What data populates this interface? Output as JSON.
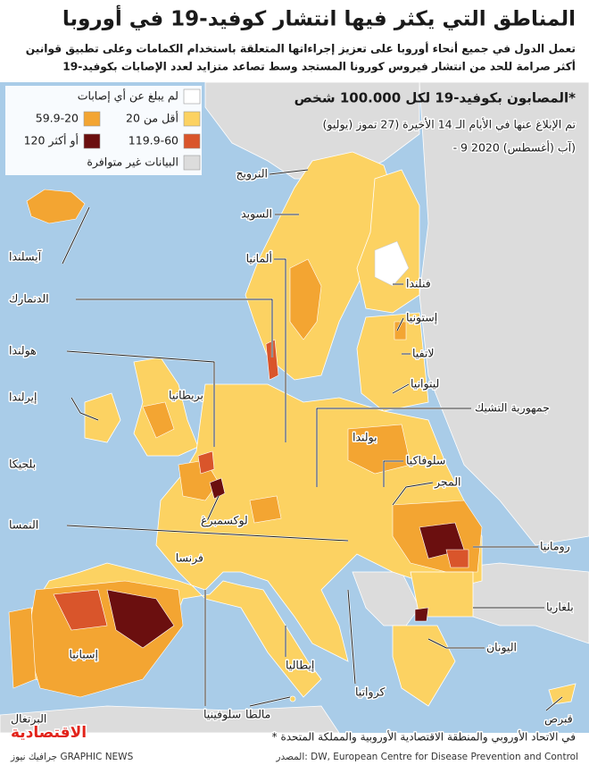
{
  "header": {
    "title": "المناطق التي يكثر فيها انتشار كوفيد-19 في أوروبا",
    "subtitle_lines": [
      "تعمل الدول في جميع أنحاء أوروبا على تعزيز إجراءاتها المتعلقة باستخدام الكمامات وعلى تطبيق قوانين",
      "أكثر صرامة للحد من انتشار فيروس كورونا المستجد وسط تصاعد متزايد لعدد الإصابات بكوفيد-19"
    ]
  },
  "legend": {
    "title": "المصابون بكوفيد-19 لكل 100.000 شخص*",
    "subtitle_lines": [
      "تم الإبلاغ عنها في الأيام الـ 14 الأخيرة (27 تموز (يوليو)",
      "- 9 آب (أغسطس) 2020)"
    ],
    "items": [
      {
        "label": "لم يبلغ عن أي إصابات",
        "color": "#ffffff"
      },
      {
        "label": "أقل من 20",
        "color": "#fcd262"
      },
      {
        "label": "59.9-20",
        "color": "#f3a532"
      },
      {
        "label": "119.9-60",
        "color": "#d9552b"
      },
      {
        "label": "120 أو أكثر",
        "color": "#6b0f0f"
      },
      {
        "label": "البيانات غير متوافرة",
        "color": "#dcdcdc"
      }
    ]
  },
  "labels": [
    "النرويج",
    "السويد",
    "آيسلندا",
    "ألمانيا",
    "فنلندا",
    "الدنمارك",
    "إستونيا",
    "هولندا",
    "لاتفيا",
    "بريطانيا",
    "ليتوانيا",
    "إيرلندا",
    "جمهورية التشيك",
    "بولندا",
    "بلجيكا",
    "سلوفاكيا",
    "المجر",
    "لوكسمبرغ",
    "النمسا",
    "رومانيا",
    "فرنسا",
    "بلغاريا",
    "إسبانيا",
    "اليونان",
    "إيطاليا",
    "البرتغال",
    "كرواتيا",
    "سلوفينيا",
    "مالطا",
    "قبرص"
  ],
  "footnote": "* في الاتحاد الأوروبي والمنطقة الاقتصادية الأوروبية والمملكة المتحدة",
  "source": "المصدر: DW, European Centre for Disease Prevention and Control",
  "credit": "جرافيك نيوز GRAPHIC NEWS",
  "logo": "الاقتصادية"
}
